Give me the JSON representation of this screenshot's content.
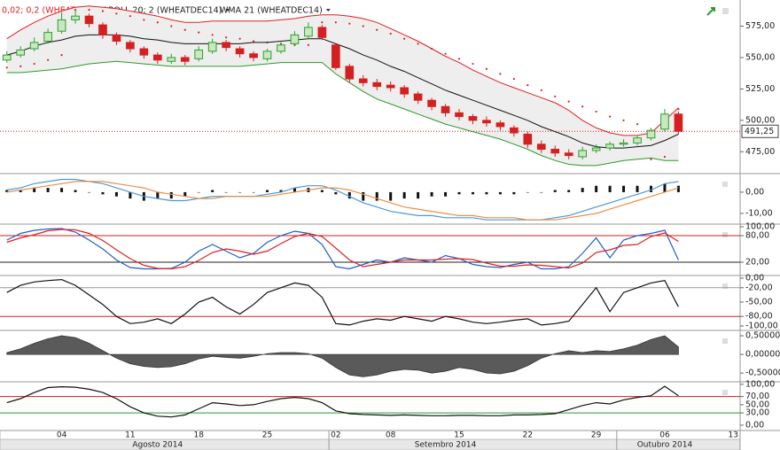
{
  "chart_data": [
    {
      "type": "candlestick",
      "categories": [
        null,
        null,
        null,
        null,
        "04",
        null,
        null,
        null,
        null,
        "11",
        null,
        null,
        null,
        null,
        "18",
        null,
        null,
        null,
        null,
        "25",
        null,
        null,
        null,
        null,
        "02",
        null,
        null,
        null,
        "08",
        null,
        null,
        null,
        null,
        "15",
        null,
        null,
        null,
        null,
        "22",
        null,
        null,
        null,
        null,
        "29",
        null,
        null,
        null,
        null,
        "06",
        null,
        null,
        null,
        null,
        "13"
      ],
      "months": [
        "Agosto 2014",
        "Setembro 2014",
        "Outubro 2014"
      ],
      "open": [
        548,
        552,
        557,
        563,
        571,
        580,
        583,
        576,
        568,
        562,
        557,
        552,
        547,
        550,
        549,
        555,
        562,
        557,
        553,
        549,
        555,
        561,
        567,
        574,
        560,
        543,
        533,
        530,
        528,
        526,
        521,
        516,
        511,
        506,
        503,
        500,
        498,
        494,
        489,
        481,
        477,
        474,
        471,
        476,
        478,
        481,
        482,
        486,
        493,
        505,
        null,
        null,
        null,
        null
      ],
      "high": [
        555,
        559,
        566,
        573,
        586,
        588,
        585,
        578,
        570,
        564,
        559,
        554,
        553,
        552,
        559,
        565,
        564,
        559,
        555,
        557,
        562,
        571,
        578,
        576,
        561,
        545,
        536,
        533,
        531,
        528,
        523,
        518,
        513,
        509,
        505,
        503,
        500,
        496,
        491,
        484,
        480,
        477,
        479,
        481,
        483,
        485,
        488,
        494,
        509,
        507,
        null,
        null,
        null,
        null
      ],
      "low": [
        546,
        550,
        555,
        561,
        569,
        577,
        574,
        565,
        560,
        554,
        549,
        545,
        545,
        544,
        547,
        553,
        555,
        550,
        547,
        547,
        553,
        559,
        565,
        564,
        540,
        530,
        527,
        524,
        523,
        518,
        513,
        508,
        503,
        500,
        497,
        495,
        492,
        487,
        478,
        474,
        471,
        469,
        469,
        474,
        476,
        479,
        480,
        484,
        491,
        489,
        null,
        null,
        null,
        null
      ],
      "close": [
        552,
        556,
        562,
        570,
        580,
        583,
        577,
        568,
        563,
        557,
        552,
        548,
        550,
        547,
        556,
        562,
        558,
        553,
        550,
        555,
        560,
        568,
        574,
        566,
        542,
        533,
        530,
        527,
        526,
        521,
        516,
        511,
        506,
        503,
        500,
        498,
        495,
        490,
        481,
        477,
        474,
        472,
        476,
        478,
        481,
        482,
        486,
        492,
        505,
        491.25,
        null,
        null,
        null,
        null
      ],
      "up_color": "#2e9e2e",
      "down_color": "#d42020",
      "last_label": "491,25",
      "series": [
        {
          "name": "0,02; 0,2 (WHEATDEC14)",
          "style": "dots",
          "color": "#e02020",
          "values": [
            542,
            543,
            545,
            548,
            552,
            588,
            588,
            587,
            585,
            583,
            580,
            578,
            575,
            572,
            570,
            568,
            566,
            565,
            563,
            562,
            561,
            560,
            560,
            578,
            578,
            577,
            575,
            572,
            569,
            565,
            561,
            557,
            553,
            549,
            545,
            541,
            537,
            533,
            528,
            524,
            519,
            515,
            511,
            507,
            503,
            500,
            497,
            469,
            471,
            509,
            null,
            null,
            null,
            null
          ]
        },
        {
          "name": "BOLL 20; 2 (WHEATDEC14)",
          "color": "#e02020",
          "lower_color": "#2a9a2a",
          "upper": [
            565,
            572,
            578,
            583,
            587,
            590,
            591,
            590,
            589,
            587,
            585,
            583,
            580,
            578,
            578,
            579,
            579,
            579,
            579,
            579,
            580,
            581,
            583,
            584,
            584,
            583,
            581,
            578,
            573,
            568,
            563,
            557,
            551,
            546,
            540,
            535,
            530,
            526,
            522,
            518,
            514,
            508,
            500,
            494,
            490,
            488,
            488,
            490,
            500,
            510,
            null,
            null,
            null,
            null
          ],
          "lower": [
            538,
            538,
            539,
            540,
            541,
            543,
            545,
            546,
            547,
            546,
            545,
            544,
            543,
            543,
            543,
            543,
            543,
            543,
            544,
            545,
            546,
            546,
            546,
            546,
            537,
            530,
            523,
            517,
            513,
            509,
            505,
            501,
            497,
            494,
            491,
            488,
            485,
            481,
            477,
            472,
            468,
            465,
            464,
            464,
            466,
            468,
            469,
            470,
            468,
            468,
            null,
            null,
            null,
            null
          ]
        },
        {
          "name": "WMA 21 (WHEATDEC14)",
          "color": "#111111",
          "values": [
            552,
            555,
            559,
            562,
            564,
            567,
            568,
            568,
            568,
            567,
            565,
            564,
            562,
            561,
            561,
            561,
            561,
            561,
            562,
            562,
            563,
            564,
            565,
            565,
            561,
            557,
            552,
            548,
            543,
            539,
            534,
            529,
            524,
            520,
            516,
            512,
            508,
            504,
            500,
            495,
            491,
            487,
            482,
            479,
            478,
            478,
            479,
            480,
            484,
            489,
            null,
            null,
            null,
            null
          ]
        }
      ],
      "ylim": [
        458.3,
        594.4
      ],
      "yticks": [
        {
          "value": 575,
          "label": "575,00"
        },
        {
          "value": 550,
          "label": "550,00"
        },
        {
          "value": 525,
          "label": "525,00"
        },
        {
          "value": 500,
          "label": "500,00"
        },
        {
          "value": 475,
          "label": "475,00"
        }
      ]
    },
    {
      "type": "bar",
      "color": "#111111",
      "values": [
        1,
        1,
        2,
        2,
        2,
        1,
        0,
        -1,
        -2,
        -3,
        -4,
        -3,
        -3,
        -2,
        0,
        1,
        0,
        0,
        0,
        1,
        1,
        2,
        2,
        1,
        -1,
        -3,
        -4,
        -4,
        -4,
        -3,
        -3,
        -2,
        -2,
        -1,
        -1,
        -1,
        -1,
        -1,
        0,
        0,
        1,
        1,
        2,
        3,
        3,
        3,
        3,
        3,
        4,
        3,
        null,
        null,
        null,
        null
      ],
      "series": [
        {
          "color": "#4a9ad8",
          "values": [
            1,
            2,
            4,
            5,
            6,
            6,
            5,
            4,
            2,
            0,
            -2,
            -3,
            -4,
            -4,
            -3,
            -2,
            -2,
            -2,
            -2,
            -1,
            0,
            2,
            3,
            3,
            1,
            -2,
            -5,
            -7,
            -9,
            -10,
            -11,
            -11,
            -12,
            -12,
            -12,
            -13,
            -13,
            -13,
            -13,
            -13,
            -12,
            -11,
            -9,
            -7,
            -5,
            -3,
            -1,
            1,
            4,
            5,
            null,
            null,
            null,
            null
          ]
        },
        {
          "color": "#e8904a",
          "values": [
            0,
            1,
            2,
            3,
            4,
            5,
            5,
            5,
            4,
            3,
            2,
            0,
            -1,
            -2,
            -3,
            -3,
            -2,
            -2,
            -2,
            -2,
            -1,
            0,
            1,
            2,
            2,
            1,
            -1,
            -3,
            -5,
            -7,
            -8,
            -9,
            -10,
            -11,
            -11,
            -12,
            -12,
            -12,
            -13,
            -13,
            -13,
            -12,
            -11,
            -10,
            -8,
            -6,
            -4,
            -2,
            0,
            2,
            null,
            null,
            null,
            null
          ]
        }
      ],
      "ylim": [
        -14.6,
        8.3
      ],
      "yticks": [
        {
          "value": 0,
          "label": "0,00"
        },
        {
          "value": -10,
          "label": "-10,00"
        }
      ]
    },
    {
      "type": "line",
      "series": [
        {
          "color": "#2060c0",
          "values": [
            70,
            85,
            92,
            95,
            96,
            88,
            70,
            50,
            25,
            8,
            5,
            5,
            6,
            20,
            45,
            60,
            45,
            30,
            40,
            65,
            80,
            90,
            85,
            60,
            10,
            5,
            15,
            25,
            20,
            30,
            25,
            20,
            35,
            28,
            15,
            10,
            8,
            15,
            20,
            5,
            5,
            10,
            40,
            75,
            30,
            70,
            80,
            85,
            92,
            25,
            null,
            null,
            null,
            null
          ]
        },
        {
          "color": "#e02020",
          "values": [
            65,
            75,
            82,
            91,
            94,
            93,
            85,
            69,
            48,
            28,
            13,
            6,
            5,
            10,
            24,
            42,
            50,
            45,
            38,
            45,
            62,
            78,
            85,
            78,
            52,
            25,
            10,
            15,
            20,
            25,
            25,
            25,
            27,
            28,
            26,
            18,
            11,
            11,
            14,
            13,
            10,
            7,
            18,
            42,
            48,
            58,
            60,
            78,
            86,
            67,
            null,
            null,
            null,
            null
          ]
        }
      ],
      "levels": [
        {
          "value": 80,
          "color": "#d02020"
        },
        {
          "value": 20,
          "color": "#222222"
        }
      ],
      "ylim": [
        -8,
        104
      ],
      "yticks": [
        {
          "value": 100,
          "label": "100,00"
        },
        {
          "value": 80,
          "label": "80,00"
        },
        {
          "value": 20,
          "label": "20,00"
        }
      ]
    },
    {
      "type": "line",
      "series": [
        {
          "color": "#111111",
          "values": [
            -30,
            -15,
            -8,
            -5,
            -3,
            -15,
            -35,
            -55,
            -80,
            -95,
            -92,
            -85,
            -95,
            -75,
            -50,
            -40,
            -60,
            -75,
            -55,
            -30,
            -20,
            -10,
            -15,
            -40,
            -95,
            -98,
            -90,
            -85,
            -88,
            -80,
            -85,
            -90,
            -80,
            -85,
            -92,
            -95,
            -92,
            -88,
            -85,
            -98,
            -95,
            -90,
            -55,
            -20,
            -70,
            -30,
            -20,
            -10,
            -5,
            -60,
            null,
            null,
            null,
            null
          ]
        }
      ],
      "levels": [
        {
          "value": -20,
          "color": "#999999"
        },
        {
          "value": -80,
          "color": "#d02020"
        }
      ],
      "ylim": [
        -107.4,
        3.7
      ],
      "yticks": [
        {
          "value": 0,
          "label": "0,00"
        },
        {
          "value": -20,
          "label": "-20,00"
        },
        {
          "value": -50,
          "label": "-50,00"
        },
        {
          "value": -80,
          "label": "-80,00"
        },
        {
          "value": -100,
          "label": "-100,00"
        }
      ]
    },
    {
      "type": "area",
      "color": "#5a5a5a",
      "values": [
        0.05,
        0.15,
        0.3,
        0.42,
        0.5,
        0.45,
        0.3,
        0.1,
        -0.1,
        -0.25,
        -0.32,
        -0.35,
        -0.33,
        -0.25,
        -0.12,
        -0.05,
        -0.08,
        -0.1,
        -0.05,
        0.02,
        0.05,
        0.05,
        0.02,
        -0.1,
        -0.35,
        -0.55,
        -0.6,
        -0.55,
        -0.45,
        -0.4,
        -0.42,
        -0.5,
        -0.45,
        -0.35,
        -0.4,
        -0.5,
        -0.52,
        -0.45,
        -0.3,
        -0.1,
        0.02,
        0.1,
        0.05,
        0.1,
        0.08,
        0.15,
        0.25,
        0.4,
        0.5,
        0.2,
        null,
        null,
        null,
        null
      ],
      "ylim": [
        -0.71,
        0.62
      ],
      "yticks": [
        {
          "value": 0.5,
          "label": "0,50000"
        },
        {
          "value": 0,
          "label": "0,00000"
        },
        {
          "value": -0.5,
          "label": "-0,50000"
        }
      ]
    },
    {
      "type": "line",
      "series": [
        {
          "color": "#111111",
          "values": [
            55,
            65,
            80,
            92,
            94,
            93,
            88,
            80,
            65,
            45,
            30,
            22,
            20,
            25,
            40,
            55,
            52,
            48,
            50,
            58,
            65,
            68,
            65,
            55,
            35,
            28,
            26,
            25,
            24,
            25,
            24,
            23,
            23,
            24,
            24,
            23,
            23,
            25,
            25,
            26,
            28,
            38,
            48,
            55,
            52,
            62,
            68,
            72,
            95,
            72,
            null,
            null,
            null,
            null
          ]
        }
      ],
      "levels": [
        {
          "value": 70,
          "color": "#d02020"
        },
        {
          "value": 30,
          "color": "#2a9a2a"
        }
      ],
      "ylim": [
        -11,
        104
      ],
      "yticks": [
        {
          "value": 100,
          "label": "100,00"
        },
        {
          "value": 70,
          "label": "70,00"
        },
        {
          "value": 50,
          "label": "50,00"
        },
        {
          "value": 30,
          "label": "30,00"
        },
        {
          "value": 0,
          "label": "0,00"
        }
      ]
    }
  ]
}
